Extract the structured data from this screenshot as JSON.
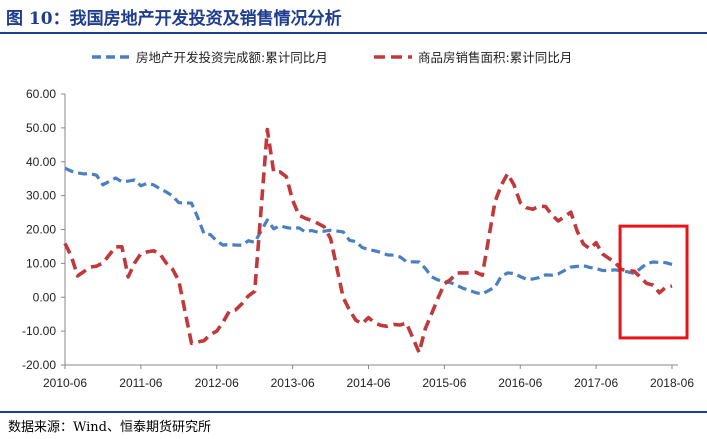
{
  "header": {
    "title": "图 10：我国房地产开发投资及销售情况分析"
  },
  "footer": {
    "source": "数据来源：Wind、恒泰期货研究所"
  },
  "colors": {
    "investment": "#4a7fc1",
    "sales": "#c0393b",
    "highlight": "#e8141a",
    "title": "#1f3d8f"
  },
  "chart_data": {
    "type": "line",
    "title": "",
    "xlabel": "",
    "ylabel": "",
    "ylim": [
      -20,
      60
    ],
    "yticks": [
      -20,
      -10,
      0,
      10,
      20,
      30,
      40,
      50,
      60
    ],
    "ytick_labels": [
      "-20.00",
      "-10.00",
      "0.00",
      "10.00",
      "20.00",
      "30.00",
      "40.00",
      "50.00",
      "60.00"
    ],
    "xticks": [
      "2010-06",
      "2011-06",
      "2012-06",
      "2013-06",
      "2014-06",
      "2015-06",
      "2016-06",
      "2017-06",
      "2018-06"
    ],
    "x_range": [
      "2010-06",
      "2018-06"
    ],
    "grid": false,
    "legend_position": "top",
    "highlight_box": {
      "x_from": "2017-12",
      "x_to": "2018-06",
      "y_from": -12,
      "y_to": 21
    },
    "series": [
      {
        "name": "房地产开发投资完成额:累计同比月",
        "style": "dashed",
        "color": "#4a7fc1",
        "points": [
          [
            "2010-06",
            38.1
          ],
          [
            "2010-07",
            37.2
          ],
          [
            "2010-08",
            36.7
          ],
          [
            "2010-09",
            36.4
          ],
          [
            "2010-10",
            36.5
          ],
          [
            "2010-11",
            36.0
          ],
          [
            "2010-12",
            33.2
          ],
          [
            "2011-02",
            35.2
          ],
          [
            "2011-03",
            34.1
          ],
          [
            "2011-04",
            34.3
          ],
          [
            "2011-05",
            34.6
          ],
          [
            "2011-06",
            32.9
          ],
          [
            "2011-07",
            33.6
          ],
          [
            "2011-08",
            33.2
          ],
          [
            "2011-09",
            32.0
          ],
          [
            "2011-10",
            31.1
          ],
          [
            "2011-11",
            29.9
          ],
          [
            "2011-12",
            27.9
          ],
          [
            "2012-02",
            27.8
          ],
          [
            "2012-03",
            23.5
          ],
          [
            "2012-04",
            18.7
          ],
          [
            "2012-05",
            18.5
          ],
          [
            "2012-06",
            16.6
          ],
          [
            "2012-07",
            15.4
          ],
          [
            "2012-08",
            15.6
          ],
          [
            "2012-09",
            15.4
          ],
          [
            "2012-10",
            15.4
          ],
          [
            "2012-11",
            16.7
          ],
          [
            "2012-12",
            16.2
          ],
          [
            "2013-02",
            22.8
          ],
          [
            "2013-03",
            20.2
          ],
          [
            "2013-04",
            21.1
          ],
          [
            "2013-05",
            20.6
          ],
          [
            "2013-06",
            20.3
          ],
          [
            "2013-07",
            20.5
          ],
          [
            "2013-08",
            19.3
          ],
          [
            "2013-09",
            19.7
          ],
          [
            "2013-10",
            19.2
          ],
          [
            "2013-11",
            19.5
          ],
          [
            "2013-12",
            19.8
          ],
          [
            "2014-02",
            19.3
          ],
          [
            "2014-03",
            16.8
          ],
          [
            "2014-04",
            16.4
          ],
          [
            "2014-05",
            14.7
          ],
          [
            "2014-06",
            14.1
          ],
          [
            "2014-07",
            13.7
          ],
          [
            "2014-08",
            13.2
          ],
          [
            "2014-09",
            12.5
          ],
          [
            "2014-10",
            12.4
          ],
          [
            "2014-11",
            11.9
          ],
          [
            "2014-12",
            10.5
          ],
          [
            "2015-02",
            10.4
          ],
          [
            "2015-03",
            8.5
          ],
          [
            "2015-04",
            6.0
          ],
          [
            "2015-05",
            5.1
          ],
          [
            "2015-06",
            4.6
          ],
          [
            "2015-07",
            4.3
          ],
          [
            "2015-08",
            3.5
          ],
          [
            "2015-09",
            2.6
          ],
          [
            "2015-10",
            2.0
          ],
          [
            "2015-11",
            1.3
          ],
          [
            "2015-12",
            1.0
          ],
          [
            "2016-02",
            3.0
          ],
          [
            "2016-03",
            6.2
          ],
          [
            "2016-04",
            7.2
          ],
          [
            "2016-05",
            7.0
          ],
          [
            "2016-06",
            6.1
          ],
          [
            "2016-07",
            5.3
          ],
          [
            "2016-08",
            5.4
          ],
          [
            "2016-09",
            5.8
          ],
          [
            "2016-10",
            6.6
          ],
          [
            "2016-11",
            6.5
          ],
          [
            "2016-12",
            6.9
          ],
          [
            "2017-02",
            8.9
          ],
          [
            "2017-03",
            9.1
          ],
          [
            "2017-04",
            9.3
          ],
          [
            "2017-05",
            8.8
          ],
          [
            "2017-06",
            8.5
          ],
          [
            "2017-07",
            7.9
          ],
          [
            "2017-08",
            7.9
          ],
          [
            "2017-09",
            8.1
          ],
          [
            "2017-10",
            7.8
          ],
          [
            "2017-11",
            7.5
          ],
          [
            "2017-12",
            7.0
          ],
          [
            "2018-02",
            9.9
          ],
          [
            "2018-03",
            10.4
          ],
          [
            "2018-04",
            10.3
          ],
          [
            "2018-05",
            10.2
          ],
          [
            "2018-06",
            9.7
          ]
        ]
      },
      {
        "name": "商品房销售面积:累计同比月",
        "style": "dashed",
        "color": "#c0393b",
        "points": [
          [
            "2010-06",
            15.9
          ],
          [
            "2010-07",
            12.1
          ],
          [
            "2010-08",
            6.3
          ],
          [
            "2010-09",
            7.6
          ],
          [
            "2010-10",
            8.9
          ],
          [
            "2010-11",
            9.2
          ],
          [
            "2010-12",
            10.1
          ],
          [
            "2011-02",
            14.9
          ],
          [
            "2011-03",
            14.9
          ],
          [
            "2011-04",
            6.0
          ],
          [
            "2011-05",
            10.1
          ],
          [
            "2011-06",
            12.9
          ],
          [
            "2011-07",
            13.4
          ],
          [
            "2011-08",
            13.7
          ],
          [
            "2011-09",
            12.9
          ],
          [
            "2011-10",
            10.1
          ],
          [
            "2011-11",
            8.3
          ],
          [
            "2011-12",
            4.9
          ],
          [
            "2012-02",
            -13.6
          ],
          [
            "2012-03",
            -13.2
          ],
          [
            "2012-04",
            -12.8
          ],
          [
            "2012-05",
            -11.0
          ],
          [
            "2012-06",
            -10.0
          ],
          [
            "2012-07",
            -7.3
          ],
          [
            "2012-08",
            -4.1
          ],
          [
            "2012-09",
            -3.7
          ],
          [
            "2012-10",
            -1.9
          ],
          [
            "2012-11",
            0.4
          ],
          [
            "2012-12",
            1.8
          ],
          [
            "2013-02",
            49.5
          ],
          [
            "2013-03",
            37.0
          ],
          [
            "2013-04",
            37.0
          ],
          [
            "2013-05",
            35.6
          ],
          [
            "2013-06",
            28.7
          ],
          [
            "2013-07",
            24.2
          ],
          [
            "2013-08",
            23.3
          ],
          [
            "2013-09",
            22.7
          ],
          [
            "2013-10",
            21.8
          ],
          [
            "2013-11",
            20.8
          ],
          [
            "2013-12",
            17.3
          ],
          [
            "2014-02",
            -0.1
          ],
          [
            "2014-03",
            -3.8
          ],
          [
            "2014-04",
            -6.8
          ],
          [
            "2014-05",
            -7.8
          ],
          [
            "2014-06",
            -6.0
          ],
          [
            "2014-07",
            -7.6
          ],
          [
            "2014-08",
            -8.3
          ],
          [
            "2014-09",
            -8.6
          ],
          [
            "2014-10",
            -8.0
          ],
          [
            "2014-11",
            -8.2
          ],
          [
            "2014-12",
            -7.6
          ],
          [
            "2015-02",
            -16.3
          ],
          [
            "2015-03",
            -9.2
          ],
          [
            "2015-04",
            -4.8
          ],
          [
            "2015-05",
            -0.2
          ],
          [
            "2015-06",
            3.9
          ],
          [
            "2015-07",
            5.3
          ],
          [
            "2015-08",
            7.2
          ],
          [
            "2015-09",
            7.2
          ],
          [
            "2015-10",
            7.2
          ],
          [
            "2015-11",
            7.4
          ],
          [
            "2015-12",
            6.5
          ],
          [
            "2016-02",
            28.2
          ],
          [
            "2016-03",
            33.1
          ],
          [
            "2016-04",
            36.5
          ],
          [
            "2016-05",
            33.2
          ],
          [
            "2016-06",
            27.9
          ],
          [
            "2016-07",
            26.4
          ],
          [
            "2016-08",
            26.0
          ],
          [
            "2016-09",
            26.9
          ],
          [
            "2016-10",
            26.8
          ],
          [
            "2016-11",
            24.3
          ],
          [
            "2016-12",
            22.5
          ],
          [
            "2017-02",
            25.1
          ],
          [
            "2017-03",
            19.5
          ],
          [
            "2017-04",
            15.7
          ],
          [
            "2017-05",
            14.3
          ],
          [
            "2017-06",
            16.1
          ],
          [
            "2017-07",
            12.8
          ],
          [
            "2017-08",
            11.5
          ],
          [
            "2017-09",
            10.3
          ],
          [
            "2017-10",
            8.2
          ],
          [
            "2017-11",
            7.9
          ],
          [
            "2017-12",
            7.7
          ],
          [
            "2018-02",
            4.1
          ],
          [
            "2018-03",
            3.6
          ],
          [
            "2018-04",
            1.3
          ],
          [
            "2018-05",
            2.9
          ],
          [
            "2018-06",
            3.3
          ]
        ]
      }
    ]
  }
}
